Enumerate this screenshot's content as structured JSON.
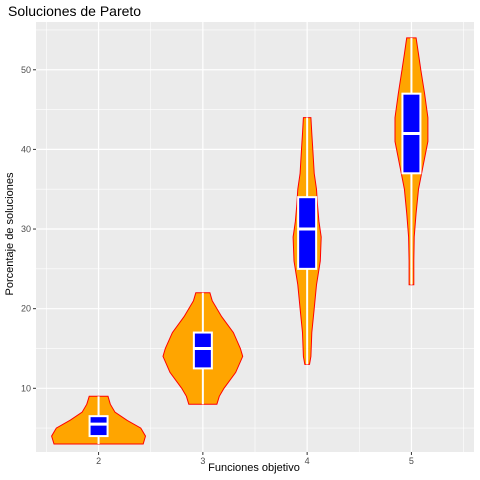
{
  "chart_data": {
    "type": "violin",
    "title": "Soluciones de Pareto",
    "xlabel": "Funciones objetivo",
    "ylabel": "Porcentaje de soluciones",
    "ylim": [
      2,
      56
    ],
    "y_ticks": [
      10,
      20,
      30,
      40,
      50
    ],
    "grid": true,
    "categories": [
      "2",
      "3",
      "4",
      "5"
    ],
    "groups": [
      {
        "category": "2",
        "min": 3,
        "max": 9,
        "q1": 4,
        "median": 5.5,
        "q3": 6.5,
        "density": [
          [
            3,
            0.95
          ],
          [
            4,
            1.0
          ],
          [
            5,
            0.9
          ],
          [
            6,
            0.6
          ],
          [
            7,
            0.35
          ],
          [
            8,
            0.25
          ],
          [
            9,
            0.2
          ]
        ]
      },
      {
        "category": "3",
        "min": 8,
        "max": 22,
        "q1": 12.5,
        "median": 15,
        "q3": 17,
        "density": [
          [
            8,
            0.3
          ],
          [
            9,
            0.35
          ],
          [
            10,
            0.45
          ],
          [
            12,
            0.7
          ],
          [
            14,
            0.85
          ],
          [
            15,
            0.8
          ],
          [
            17,
            0.65
          ],
          [
            19,
            0.4
          ],
          [
            21,
            0.2
          ],
          [
            22,
            0.15
          ]
        ]
      },
      {
        "category": "4",
        "min": 13,
        "max": 44,
        "q1": 25,
        "median": 30,
        "q3": 34,
        "density": [
          [
            13,
            0.05
          ],
          [
            14,
            0.08
          ],
          [
            17,
            0.1
          ],
          [
            20,
            0.15
          ],
          [
            23,
            0.2
          ],
          [
            26,
            0.28
          ],
          [
            29,
            0.3
          ],
          [
            31,
            0.25
          ],
          [
            33,
            0.22
          ],
          [
            35,
            0.2
          ],
          [
            37,
            0.15
          ],
          [
            40,
            0.12
          ],
          [
            42,
            0.1
          ],
          [
            44,
            0.08
          ]
        ]
      },
      {
        "category": "5",
        "min": 23,
        "max": 54,
        "q1": 37,
        "median": 42,
        "q3": 47,
        "density": [
          [
            23,
            0.05
          ],
          [
            26,
            0.05
          ],
          [
            29,
            0.06
          ],
          [
            32,
            0.1
          ],
          [
            35,
            0.15
          ],
          [
            38,
            0.25
          ],
          [
            41,
            0.35
          ],
          [
            44,
            0.35
          ],
          [
            47,
            0.28
          ],
          [
            50,
            0.2
          ],
          [
            52,
            0.15
          ],
          [
            54,
            0.1
          ]
        ]
      }
    ],
    "colors": {
      "violin_fill": "#FFA500",
      "violin_border": "#FF0000",
      "box_fill": "#0000FF",
      "box_border": "#FFFFFF",
      "panel": "#EBEBEB",
      "grid": "#FFFFFF"
    }
  }
}
